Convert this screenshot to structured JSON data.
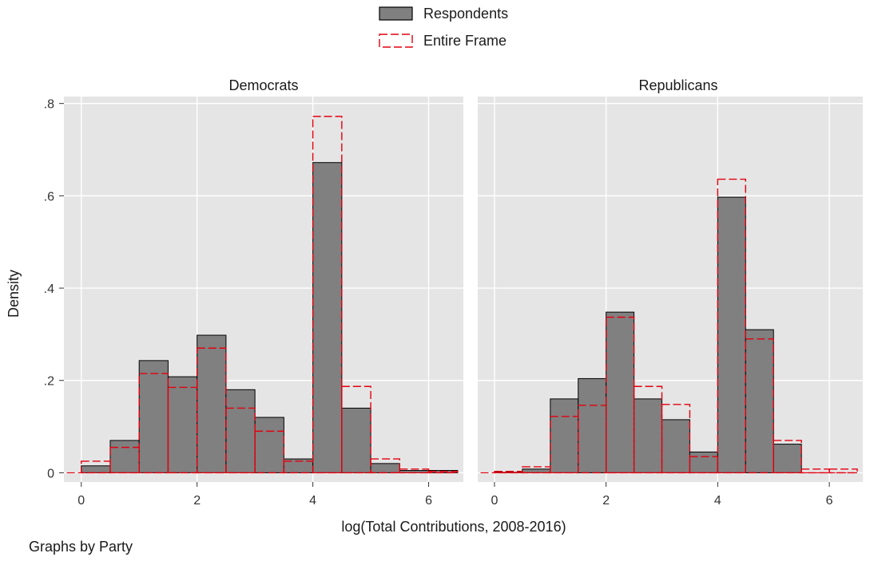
{
  "chart_data": {
    "type": "bar",
    "subtype": "overlaid-histogram-facets",
    "legend": {
      "position": "top-center",
      "entries": [
        {
          "label": "Respondents",
          "fill": "#808080",
          "stroke": "#000000",
          "style": "solid"
        },
        {
          "label": "Entire Frame",
          "fill": "none",
          "stroke": "#e3000f",
          "style": "dashed"
        }
      ]
    },
    "xlabel": "log(Total Contributions, 2008-2016)",
    "ylabel": "Density",
    "note": "Graphs by Party",
    "xlim": [
      -0.3,
      6.6
    ],
    "ylim": [
      -0.02,
      0.815
    ],
    "xticks": [
      0,
      2,
      4,
      6
    ],
    "xtick_labels": [
      "0",
      "2",
      "4",
      "6"
    ],
    "yticks": [
      0,
      0.2,
      0.4,
      0.6,
      0.8
    ],
    "ytick_labels": [
      "0",
      ".2",
      ".4",
      ".6",
      ".8"
    ],
    "grid": true,
    "panel_background": "#e5e5e5",
    "bin_width": 0.5,
    "panels": [
      {
        "title": "Democrats",
        "bin_starts": [
          0,
          0.5,
          1.0,
          1.5,
          2.0,
          2.5,
          3.0,
          3.5,
          4.0,
          4.5,
          5.0,
          5.5,
          6.0
        ],
        "respondents": [
          0.015,
          0.07,
          0.243,
          0.208,
          0.298,
          0.18,
          0.12,
          0.03,
          0.672,
          0.14,
          0.02,
          0.005,
          0.005
        ],
        "entire_frame": [
          0.025,
          0.055,
          0.215,
          0.185,
          0.27,
          0.14,
          0.09,
          0.025,
          0.772,
          0.187,
          0.03,
          0.008,
          0.003
        ]
      },
      {
        "title": "Republicans",
        "bin_starts": [
          0,
          0.5,
          1.0,
          1.5,
          2.0,
          2.5,
          3.0,
          3.5,
          4.0,
          4.5,
          5.0,
          5.5,
          6.0
        ],
        "respondents": [
          0.001,
          0.008,
          0.16,
          0.204,
          0.348,
          0.16,
          0.115,
          0.045,
          0.597,
          0.31,
          0.062,
          0.0,
          0.0
        ],
        "entire_frame": [
          0.003,
          0.013,
          0.122,
          0.146,
          0.337,
          0.187,
          0.148,
          0.035,
          0.636,
          0.29,
          0.07,
          0.008,
          0.008
        ]
      }
    ]
  }
}
